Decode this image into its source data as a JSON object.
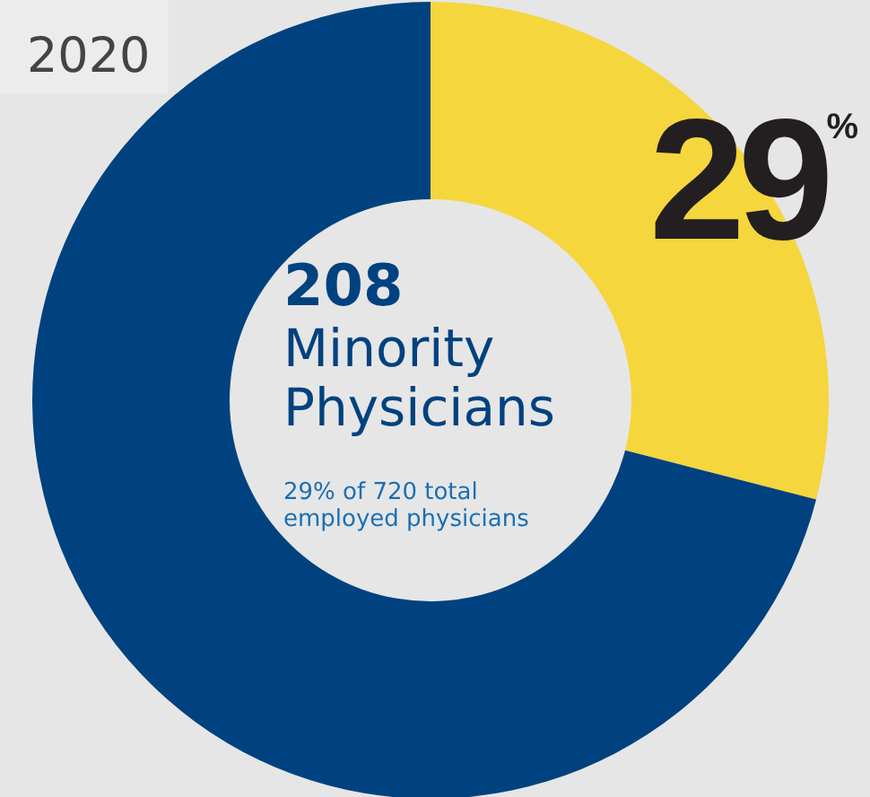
{
  "chart_data": {
    "type": "donut",
    "title": "2020",
    "categories": [
      null,
      null
    ],
    "values": [
      29,
      71
    ],
    "colors": [
      "#f5d63d",
      "#00427f"
    ],
    "value_labels": [
      "29$^{%}$",
      null
    ],
    "annotations": [
      "208",
      "Minority Physicians",
      "29% of 720 total employed physicians"
    ]
  }
}
